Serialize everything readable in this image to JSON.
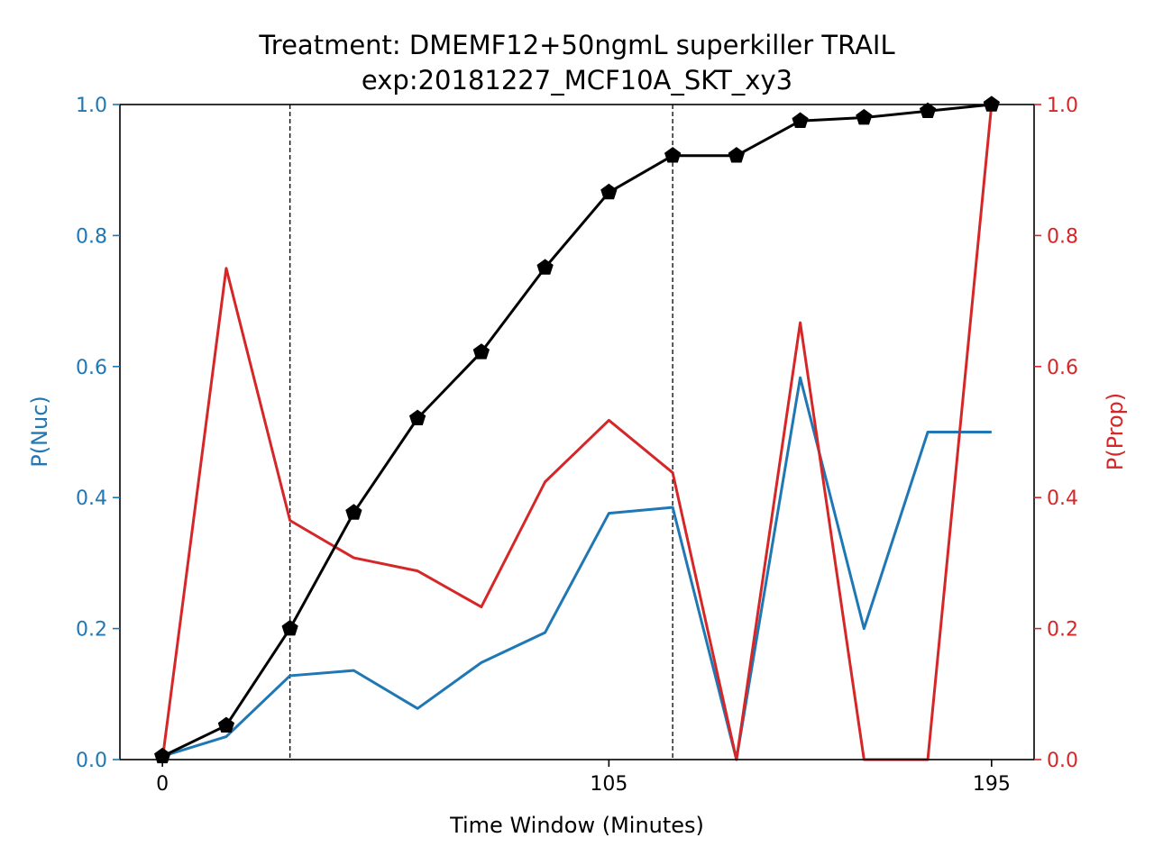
{
  "chart_data": {
    "type": "line",
    "title": "Treatment: DMEMF12+50ngmL superkiller TRAIL",
    "subtitle": "exp:20181227_MCF10A_SKT_xy3",
    "xlabel": "Time Window (Minutes)",
    "ylabel_left": "P(Nuc)",
    "ylabel_right": "P(Prop)",
    "xlim": [
      -10,
      205
    ],
    "ylim_left": [
      0,
      1
    ],
    "ylim_right": [
      0,
      1
    ],
    "x_ticks": [
      0,
      105,
      195
    ],
    "x_tick_labels": [
      "0",
      "105",
      "195"
    ],
    "y_ticks": [
      0.0,
      0.2,
      0.4,
      0.6,
      0.8,
      1.0
    ],
    "y_tick_labels": [
      "0.0",
      "0.2",
      "0.4",
      "0.6",
      "0.8",
      "1.0"
    ],
    "vlines": [
      30,
      120
    ],
    "x": [
      0,
      15,
      30,
      45,
      60,
      75,
      90,
      105,
      120,
      135,
      150,
      165,
      180,
      195
    ],
    "series": [
      {
        "axis": "left",
        "color": "#1f77b4",
        "values": [
          0.005,
          0.035,
          0.128,
          0.136,
          0.078,
          0.148,
          0.194,
          0.376,
          0.385,
          0.0,
          0.583,
          0.2,
          0.5,
          0.5
        ]
      },
      {
        "axis": "right",
        "color": "#d62728",
        "values": [
          0.0,
          0.75,
          0.365,
          0.308,
          0.288,
          0.233,
          0.424,
          0.518,
          0.438,
          0.0,
          0.667,
          0.0,
          0.0,
          1.0
        ]
      },
      {
        "axis": "left",
        "color": "#000000",
        "marker": "pentagon",
        "values": [
          0.005,
          0.052,
          0.2,
          0.377,
          0.521,
          0.622,
          0.751,
          0.866,
          0.922,
          0.922,
          0.975,
          0.98,
          0.99,
          1.0
        ]
      }
    ]
  }
}
